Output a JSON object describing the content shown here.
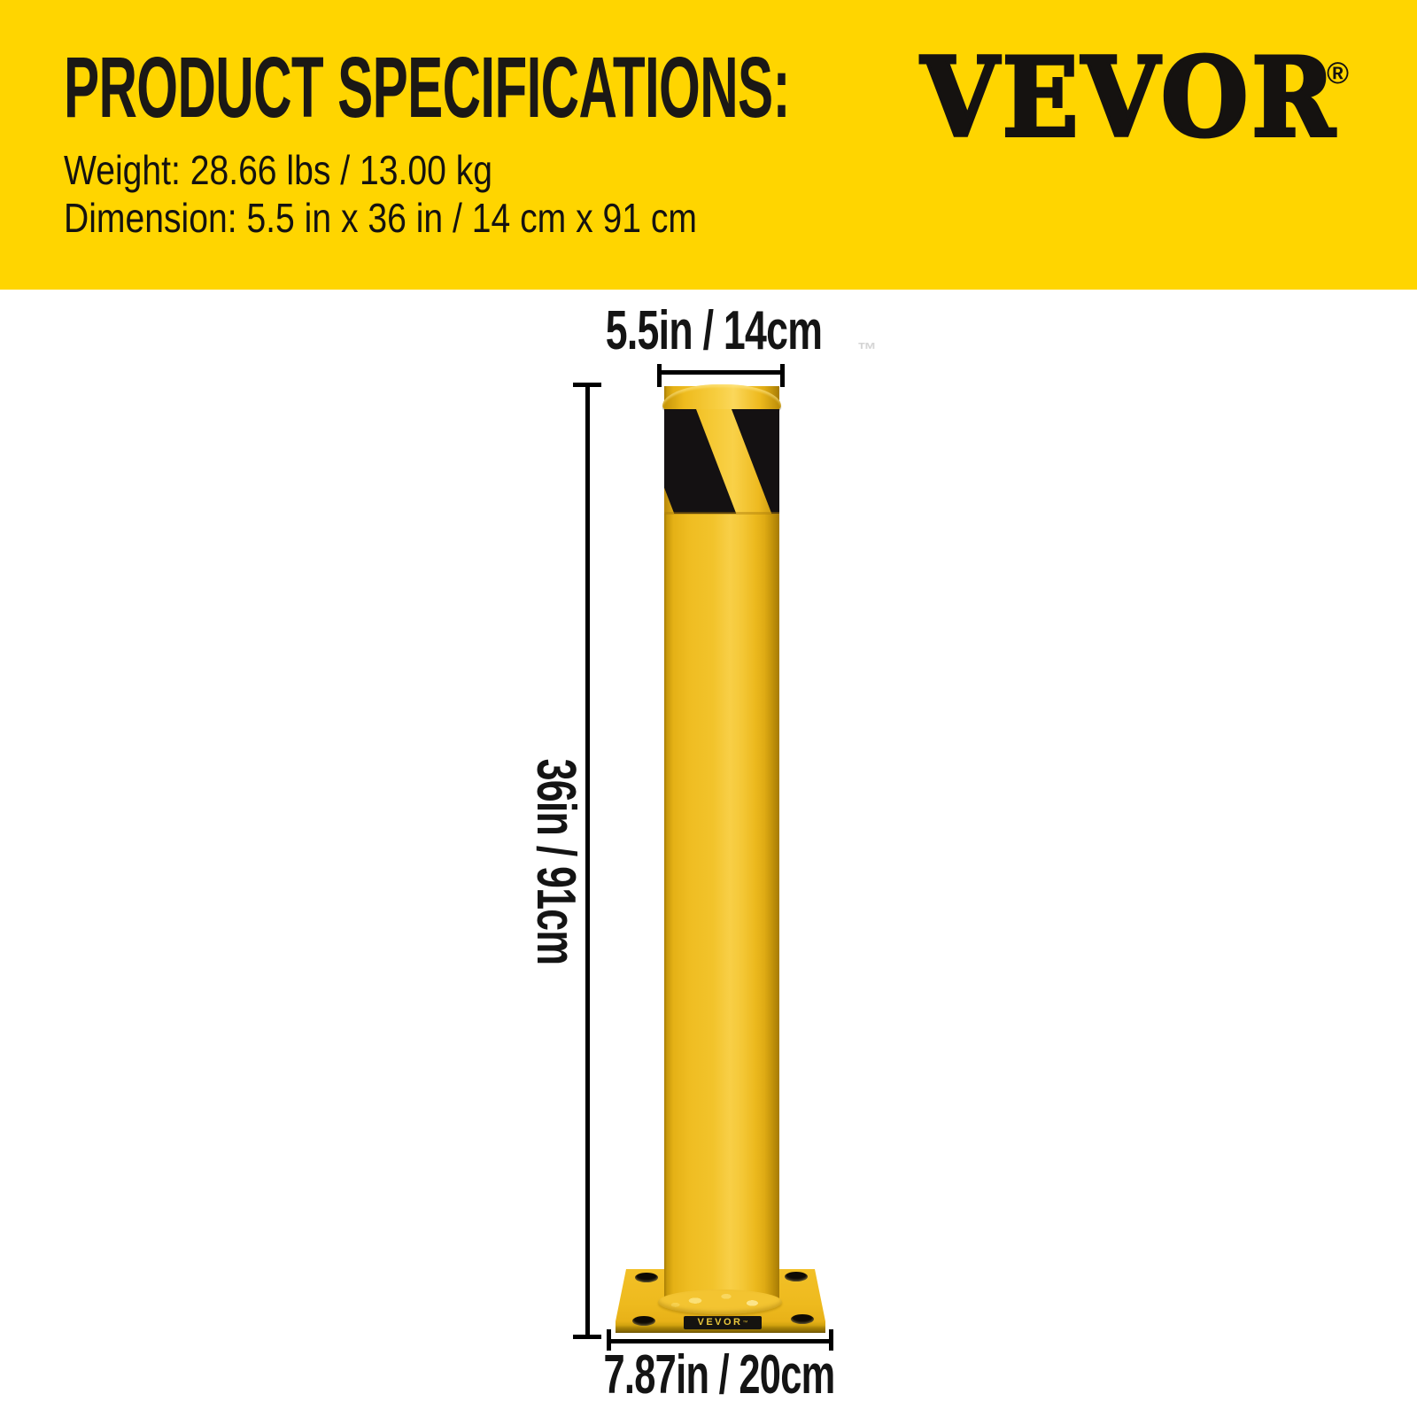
{
  "header": {
    "background": "#FFD500",
    "title": "PRODUCT SPECIFICATIONS:",
    "specs": [
      "Weight: 28.66 lbs / 13.00 kg",
      "Dimension: 5.5 in x 36 in / 14 cm x 91 cm"
    ],
    "brand": "VEVOR",
    "registered_mark": "®"
  },
  "figure": {
    "width_dimension": "5.5in / 14cm",
    "height_dimension": "36in / 91cm",
    "base_dimension": "7.87in / 20cm",
    "trademark": "™",
    "plate_brand": "VEVOR",
    "colors": {
      "banner_yellow": "#FFD500",
      "pole_yellow": "#F2C32B",
      "stripe_black": "#141112",
      "dimension_lines": "#000000"
    }
  }
}
